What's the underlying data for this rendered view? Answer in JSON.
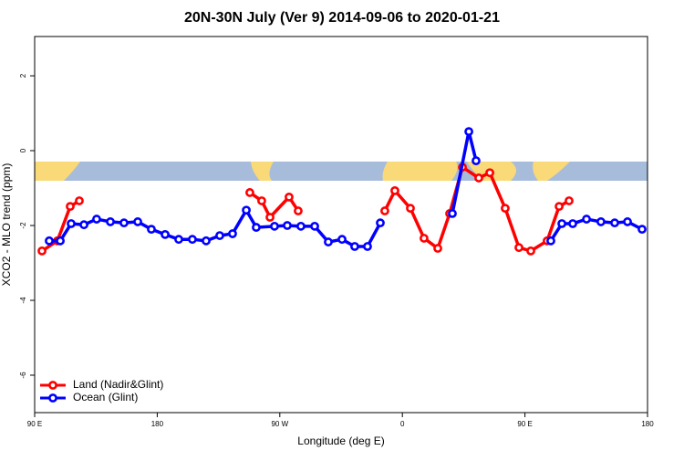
{
  "chart_data": {
    "type": "line",
    "title": "20N-30N July (Ver 9)   2014-09-06 to 2020-01-21",
    "x_label": "Longitude (deg E)",
    "y_label": "XCO2 - MLO trend (ppm)",
    "xlim": [
      90,
      540
    ],
    "xticks": [
      {
        "value": 90,
        "label": "90 E"
      },
      180,
      {
        "value": 270,
        "label": "90 W"
      },
      {
        "value": 360,
        "label": "0"
      },
      {
        "value": 450,
        "label": "90 E"
      },
      {
        "value": 540,
        "label": "180"
      }
    ],
    "ylim": [
      -7,
      3.05
    ],
    "yticks": [
      -6,
      -4,
      -2,
      0,
      2
    ],
    "legend": "bottom-left",
    "series": [
      {
        "name": "Land (Nadir&Glint)",
        "color": "#ff0000",
        "x": [
          95.4,
          106.7,
          116.1,
          122.8,
          null,
          248.0,
          256.7,
          262.8,
          276.8,
          283.5,
          null,
          347.1,
          354.5,
          365.9,
          375.9,
          386.0,
          394.7,
          404.1,
          416.1,
          424.2,
          435.5,
          445.6,
          454.3,
          466.3,
          475.1,
          482.4
        ],
        "values": [
          -2.68,
          -2.41,
          -1.49,
          -1.34,
          null,
          -1.12,
          -1.34,
          -1.78,
          -1.24,
          -1.61,
          null,
          -1.61,
          -1.07,
          -1.54,
          -2.34,
          -2.61,
          -1.68,
          -0.44,
          -0.73,
          -0.59,
          -1.54,
          -2.59,
          -2.68,
          -2.41,
          -1.49,
          -1.34
        ]
      },
      {
        "name": "Ocean (Glint)",
        "color": "#0000ff",
        "x": [
          100.7,
          108.8,
          116.8,
          126.2,
          135.5,
          145.6,
          155.6,
          165.7,
          175.7,
          185.8,
          195.8,
          205.8,
          215.9,
          225.9,
          235.3,
          245.4,
          252.7,
          266.1,
          275.5,
          285.5,
          295.6,
          305.6,
          315.7,
          325.0,
          334.4,
          343.8,
          null,
          396.7,
          408.8,
          414.1,
          null,
          469.0,
          477.1,
          485.1,
          495.2,
          505.8,
          515.9,
          525.3,
          536.0
        ],
        "values": [
          -2.41,
          -2.41,
          -1.95,
          -1.98,
          -1.83,
          -1.9,
          -1.93,
          -1.9,
          -2.1,
          -2.24,
          -2.37,
          -2.37,
          -2.41,
          -2.27,
          -2.22,
          -1.59,
          -2.05,
          -2.02,
          -2.0,
          -2.02,
          -2.02,
          -2.44,
          -2.37,
          -2.56,
          -2.56,
          -1.93,
          null,
          -1.68,
          0.51,
          -0.27,
          null,
          -2.41,
          -1.95,
          -1.95,
          -1.83,
          -1.9,
          -1.93,
          -1.9,
          -2.1
        ]
      }
    ]
  }
}
